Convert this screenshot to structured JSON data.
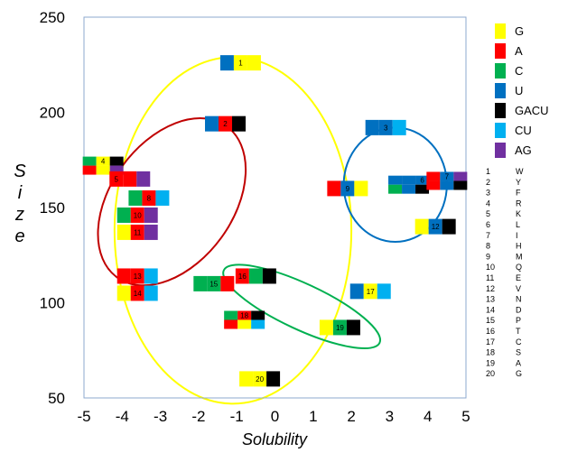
{
  "chart_data": {
    "type": "scatter",
    "xlabel": "Solubility",
    "ylabel": "Size",
    "xlim": [
      -5,
      5
    ],
    "ylim": [
      50,
      250
    ],
    "xticks": [
      -5,
      -4,
      -3,
      -2,
      -1,
      0,
      1,
      2,
      3,
      4,
      5
    ],
    "yticks": [
      250,
      200,
      150,
      100,
      50
    ],
    "colors": {
      "G": "#ffff00",
      "A": "#ff0000",
      "C": "#00b050",
      "U": "#0070c0",
      "GACU": "#000000",
      "CU": "#00b0f0",
      "AG": "#7030a0"
    },
    "legend": [
      {
        "key": "G",
        "label": "G"
      },
      {
        "key": "A",
        "label": "A"
      },
      {
        "key": "C",
        "label": "C"
      },
      {
        "key": "U",
        "label": "U"
      },
      {
        "key": "GACU",
        "label": "GACU"
      },
      {
        "key": "CU",
        "label": "CU"
      },
      {
        "key": "AG",
        "label": "AG"
      }
    ],
    "points": [
      {
        "id": "1",
        "x": -0.9,
        "y": 226,
        "top": [
          "U",
          "G",
          "G"
        ],
        "bottom": null,
        "label_seg": 1
      },
      {
        "id": "2",
        "x": -1.3,
        "y": 194,
        "top": [
          "U",
          "A",
          "GACU"
        ],
        "bottom": null,
        "label_seg": 1
      },
      {
        "id": "3",
        "x": 2.9,
        "y": 192,
        "top": [
          "U",
          "U",
          "CU"
        ],
        "bottom": null,
        "label_seg": 1
      },
      {
        "id": "4",
        "x": -4.5,
        "y": 172,
        "top": [
          "C",
          "G",
          "GACU"
        ],
        "bottom": [
          "A",
          "G",
          "AG"
        ],
        "label_seg": 1
      },
      {
        "id": "5",
        "x": -3.8,
        "y": 165,
        "top": [
          "A",
          "A",
          "AG"
        ],
        "bottom": null,
        "label_seg": 0
      },
      {
        "id": "6",
        "x": 3.5,
        "y": 162,
        "top": [
          "U",
          "U",
          "U"
        ],
        "bottom": [
          "C",
          "U",
          "GACU"
        ],
        "label_seg": 2
      },
      {
        "id": "7",
        "x": 4.5,
        "y": 164,
        "top": [
          "A",
          "U",
          "AG"
        ],
        "bottom": [
          "A",
          "U",
          "GACU"
        ],
        "label_seg": 1
      },
      {
        "id": "8",
        "x": -3.3,
        "y": 155,
        "top": [
          "C",
          "A",
          "CU"
        ],
        "bottom": null,
        "label_seg": 1
      },
      {
        "id": "9",
        "x": 1.9,
        "y": 160,
        "top": [
          "A",
          "U",
          "G"
        ],
        "bottom": null,
        "label_seg": 1
      },
      {
        "id": "10",
        "x": -3.6,
        "y": 146,
        "top": [
          "C",
          "A",
          "AG"
        ],
        "bottom": null,
        "label_seg": 1
      },
      {
        "id": "11",
        "x": -3.6,
        "y": 137,
        "top": [
          "G",
          "A",
          "AG"
        ],
        "bottom": null,
        "label_seg": 1
      },
      {
        "id": "12",
        "x": 4.2,
        "y": 140,
        "top": [
          "G",
          "U",
          "GACU"
        ],
        "bottom": null,
        "label_seg": 1
      },
      {
        "id": "13",
        "x": -3.6,
        "y": 114,
        "top": [
          "A",
          "A",
          "CU"
        ],
        "bottom": null,
        "label_seg": 1
      },
      {
        "id": "14",
        "x": -3.6,
        "y": 105,
        "top": [
          "G",
          "A",
          "CU"
        ],
        "bottom": null,
        "label_seg": 1
      },
      {
        "id": "15",
        "x": -1.6,
        "y": 110,
        "top": [
          "C",
          "C",
          "A"
        ],
        "bottom": null,
        "label_seg": 1
      },
      {
        "id": "16",
        "x": -0.5,
        "y": 114,
        "top": [
          "A",
          "C",
          "GACU"
        ],
        "bottom": null,
        "label_seg": 0
      },
      {
        "id": "17",
        "x": 2.5,
        "y": 106,
        "top": [
          "U",
          "G",
          "CU"
        ],
        "bottom": null,
        "label_seg": 1
      },
      {
        "id": "18",
        "x": -0.8,
        "y": 91,
        "top": [
          "C",
          "A",
          "GACU"
        ],
        "bottom": [
          "A",
          "G",
          "CU"
        ],
        "label_seg": 1
      },
      {
        "id": "19",
        "x": 1.7,
        "y": 87,
        "top": [
          "G",
          "C",
          "GACU"
        ],
        "bottom": null,
        "label_seg": 1
      },
      {
        "id": "20",
        "x": -0.4,
        "y": 60,
        "top": [
          "G",
          "G",
          "GACU"
        ],
        "bottom": null,
        "label_seg": 1
      }
    ],
    "ellipses": [
      {
        "color": "#ffff00",
        "cx": -1.1,
        "cy": 138,
        "rx": 3.1,
        "ry": 91,
        "rotate": 0
      },
      {
        "color": "#c00000",
        "cx": -2.7,
        "cy": 153,
        "rx": 1.6,
        "ry": 49,
        "rotate": 36
      },
      {
        "color": "#0070c0",
        "cx": 3.15,
        "cy": 162,
        "rx": 1.35,
        "ry": 30,
        "rotate": 0
      },
      {
        "color": "#00b050",
        "cx": 0.7,
        "cy": 98,
        "rx": 2.25,
        "ry": 12,
        "rotate": 25
      }
    ],
    "key": [
      {
        "n": "1",
        "aa": "W"
      },
      {
        "n": "2",
        "aa": "Y"
      },
      {
        "n": "3",
        "aa": "F"
      },
      {
        "n": "4",
        "aa": "R"
      },
      {
        "n": "5",
        "aa": "K"
      },
      {
        "n": "6",
        "aa": "L"
      },
      {
        "n": "7",
        "aa": "I"
      },
      {
        "n": "8",
        "aa": "H"
      },
      {
        "n": "9",
        "aa": "M"
      },
      {
        "n": "10",
        "aa": "Q"
      },
      {
        "n": "11",
        "aa": "E"
      },
      {
        "n": "12",
        "aa": "V"
      },
      {
        "n": "13",
        "aa": "N"
      },
      {
        "n": "14",
        "aa": "D"
      },
      {
        "n": "15",
        "aa": "P"
      },
      {
        "n": "16",
        "aa": "T"
      },
      {
        "n": "17",
        "aa": "C"
      },
      {
        "n": "18",
        "aa": "S"
      },
      {
        "n": "19",
        "aa": "A"
      },
      {
        "n": "20",
        "aa": "G"
      }
    ]
  }
}
